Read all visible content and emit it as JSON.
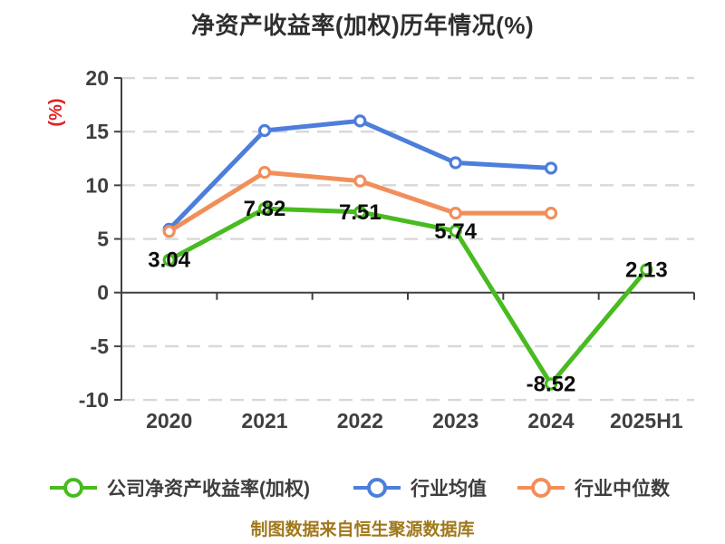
{
  "title": "净资产收益率(加权)历年情况(%)",
  "y_axis_name": "(%)",
  "footer": "制图数据来自恒生聚源数据库",
  "colors": {
    "background": "#ffffff",
    "axis": "#404040",
    "tick_label": "#3f3f3f",
    "grid": "#d8d8d8",
    "title": "#2e2e2e",
    "y_axis_name": "#e02020",
    "value_label": "#0d0d0d",
    "footer": "#a0781c",
    "legend_text": "#3e3e3e"
  },
  "chart_data": {
    "type": "line",
    "title": "净资产收益率(加权)历年情况(%)",
    "categories": [
      "2020",
      "2021",
      "2022",
      "2023",
      "2024",
      "2025H1"
    ],
    "series": [
      {
        "name": "公司净资产收益率(加权)",
        "color": "#48bb1f",
        "values": [
          3.04,
          7.82,
          7.51,
          5.74,
          -8.52,
          2.13
        ],
        "point_labels": [
          "3.04",
          "7.82",
          "7.51",
          "5.74",
          "-8.52",
          "2.13"
        ]
      },
      {
        "name": "行业均值",
        "color": "#4d7edb",
        "values": [
          5.9,
          15.1,
          16.0,
          12.1,
          11.6,
          null
        ]
      },
      {
        "name": "行业中位数",
        "color": "#f28e5a",
        "values": [
          5.7,
          11.2,
          10.4,
          7.4,
          7.4,
          null
        ]
      }
    ],
    "ylim": [
      -10,
      20
    ],
    "yticks": [
      20,
      15,
      10,
      5,
      0,
      -5,
      -10
    ],
    "ylabel": "(%)",
    "grid": "horizontal-dashed",
    "legend_position": "bottom",
    "marker": "circle-white-fill",
    "data_source_note": "制图数据来自恒生聚源数据库"
  }
}
